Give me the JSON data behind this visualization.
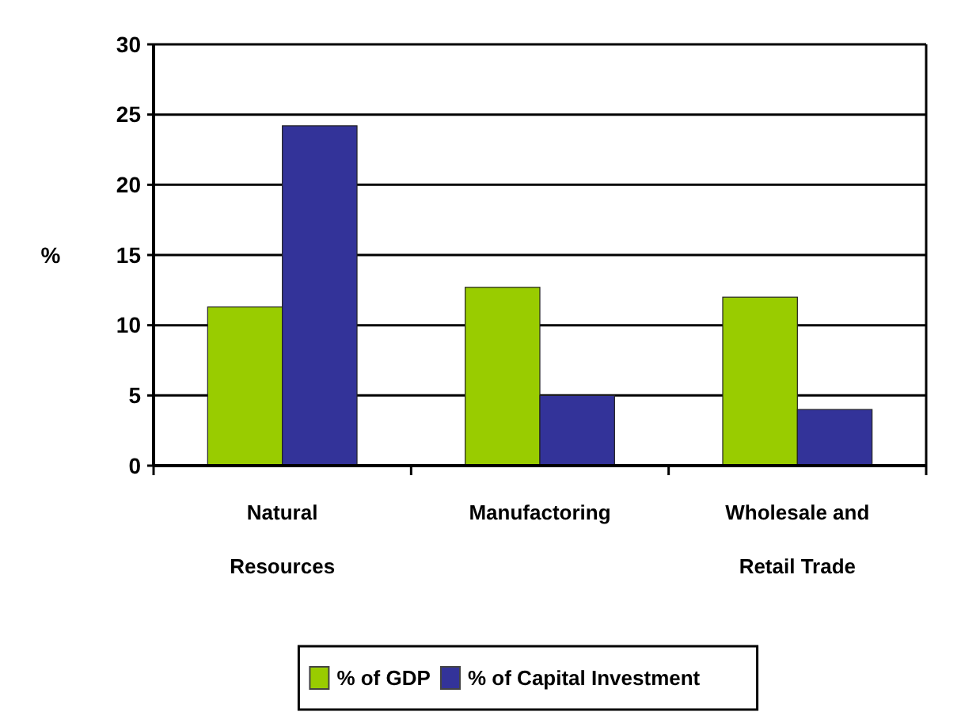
{
  "chart_data": {
    "type": "bar",
    "ylabel": "%",
    "categories": [
      "Natural Resources",
      "Manufactoring",
      "Wholesale and Retail Trade"
    ],
    "series": [
      {
        "name": "% of GDP",
        "color": "#99cc00",
        "values": [
          11.3,
          12.7,
          12.0
        ]
      },
      {
        "name": "% of Capital Investment",
        "color": "#333399",
        "values": [
          24.2,
          5.0,
          4.0
        ]
      }
    ],
    "ylim": [
      0,
      30
    ],
    "yticks": [
      0,
      5,
      10,
      15,
      20,
      25,
      30
    ],
    "grid": "y",
    "legend": "bottom"
  }
}
